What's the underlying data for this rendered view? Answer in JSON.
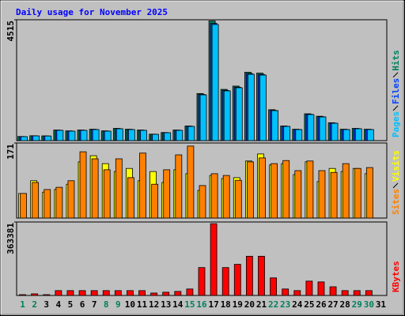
{
  "title": "Daily usage for November 2025",
  "chart_data": [
    {
      "type": "bar",
      "ylim": [
        0,
        4515
      ],
      "yticks": [
        4515
      ],
      "series": [
        {
          "name": "Hits",
          "color": "#00805c",
          "values": [
            155,
            183,
            177,
            396,
            365,
            396,
            426,
            365,
            457,
            426,
            396,
            243,
            304,
            396,
            547,
            1760,
            4470,
            1915,
            2037,
            2555,
            2522,
            1155,
            547,
            426,
            1003,
            911,
            668,
            426,
            457,
            426,
            null
          ]
        },
        {
          "name": "Files",
          "color": "#0040ff",
          "values": [
            150,
            180,
            174,
            388,
            358,
            388,
            418,
            358,
            448,
            418,
            388,
            238,
            298,
            388,
            536,
            1728,
            4380,
            1877,
            1996,
            2504,
            2472,
            1132,
            536,
            418,
            983,
            893,
            655,
            418,
            448,
            418,
            null
          ]
        },
        {
          "name": "Pages",
          "color": "#00c0ff",
          "values": [
            148,
            177,
            172,
            384,
            354,
            384,
            413,
            354,
            443,
            413,
            384,
            236,
            295,
            384,
            531,
            1711,
            4338,
            1859,
            1977,
            2479,
            2449,
            1121,
            531,
            413,
            974,
            885,
            649,
            413,
            443,
            413,
            null
          ]
        }
      ]
    },
    {
      "type": "bar",
      "ylim": [
        0,
        171
      ],
      "yticks": [
        171
      ],
      "series": [
        {
          "name": "Visits",
          "color": "#ffff00",
          "values": [
            56,
            85,
            59,
            65,
            77,
            128,
            142,
            124,
            106,
            113,
            85,
            106,
            81,
            110,
            101,
            63,
            97,
            90,
            92,
            130,
            146,
            121,
            124,
            99,
            128,
            83,
            113,
            106,
            113,
            101,
            null
          ]
        },
        {
          "name": "Sites",
          "color": "#ff8000",
          "values": [
            56,
            81,
            65,
            70,
            85,
            151,
            135,
            110,
            135,
            92,
            148,
            77,
            110,
            144,
            164,
            74,
            101,
            97,
            86,
            128,
            137,
            124,
            131,
            108,
            130,
            108,
            104,
            124,
            113,
            115,
            null
          ]
        }
      ]
    },
    {
      "type": "bar",
      "ylim": [
        0,
        363381
      ],
      "yticks": [
        363381
      ],
      "categories": [
        "1",
        "2",
        "3",
        "4",
        "5",
        "6",
        "7",
        "8",
        "9",
        "10",
        "11",
        "12",
        "13",
        "14",
        "15",
        "16",
        "17",
        "18",
        "19",
        "20",
        "21",
        "22",
        "23",
        "24",
        "25",
        "26",
        "27",
        "28",
        "29",
        "30",
        "31"
      ],
      "category_colors": [
        "#00805c",
        "#00805c",
        "#000000",
        "#000000",
        "#000000",
        "#000000",
        "#000000",
        "#00805c",
        "#00805c",
        "#000000",
        "#000000",
        "#000000",
        "#000000",
        "#000000",
        "#00805c",
        "#00805c",
        "#000000",
        "#000000",
        "#000000",
        "#000000",
        "#000000",
        "#00805c",
        "#00805c",
        "#000000",
        "#000000",
        "#000000",
        "#000000",
        "#000000",
        "#00805c",
        "#00805c",
        "#000000"
      ],
      "series": [
        {
          "name": "KBytes",
          "color": "#ff0000",
          "values": [
            4000,
            8000,
            4000,
            24000,
            24000,
            24000,
            24000,
            24000,
            24000,
            24000,
            24000,
            12000,
            16000,
            20000,
            32000,
            138000,
            355000,
            138000,
            154000,
            194000,
            194000,
            87000,
            32000,
            24000,
            71000,
            67000,
            43000,
            24000,
            24000,
            24000,
            null
          ]
        }
      ]
    }
  ]
}
